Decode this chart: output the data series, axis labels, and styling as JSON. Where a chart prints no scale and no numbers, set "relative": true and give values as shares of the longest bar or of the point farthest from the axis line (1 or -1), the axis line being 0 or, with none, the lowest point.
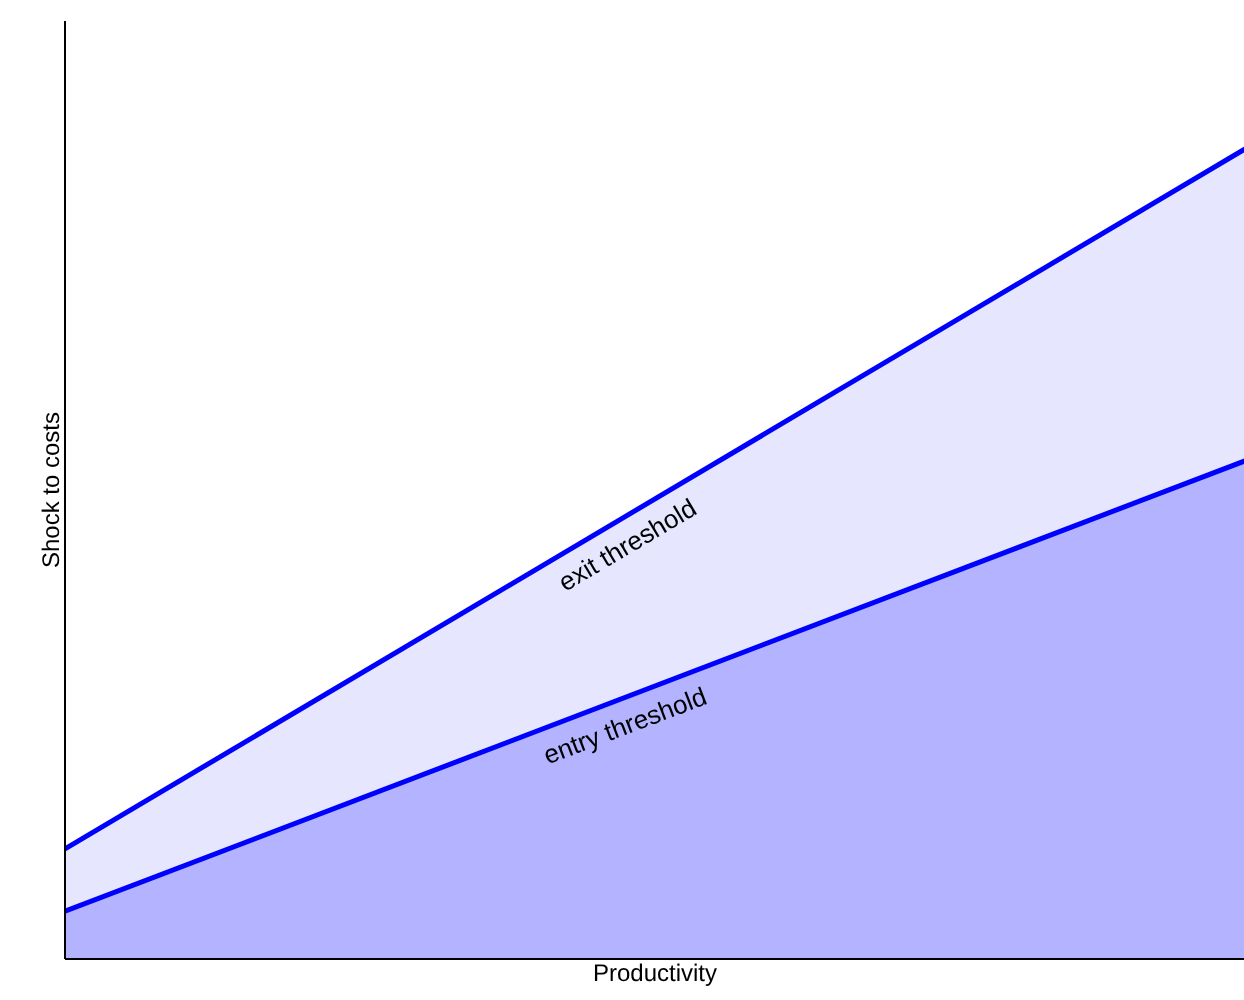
{
  "chart_data": {
    "type": "area",
    "relative": true,
    "xlabel": "Productivity",
    "ylabel": "Shock to costs",
    "categories": [
      null,
      null
    ],
    "series": [
      {
        "name": "exit threshold",
        "color": "#e6e6ff",
        "values": [
          0.136,
          1
        ]
      },
      {
        "name": "entry threshold",
        "color": "#b3b3ff",
        "values": [
          0.059,
          0.615
        ]
      }
    ]
  }
}
